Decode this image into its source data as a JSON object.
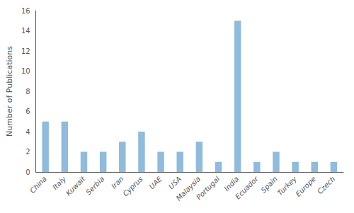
{
  "chart_data": {
    "type": "bar",
    "categories": [
      "China",
      "Italy",
      "Kuwait",
      "Serbia",
      "Iran",
      "Cyprus",
      "UAE",
      "USA",
      "Malaysia",
      "Portugal",
      "India",
      "Ecuador",
      "Spain",
      "Turkey",
      "Europe",
      "Czech"
    ],
    "values": [
      5,
      5,
      2,
      2,
      3,
      4,
      2,
      2,
      3,
      1,
      15,
      1,
      2,
      1,
      1,
      1
    ],
    "color": "#91bbda",
    "ylabel": "Number of Publications",
    "ylim": [
      0,
      16
    ],
    "yticks": [
      0,
      2,
      4,
      6,
      8,
      10,
      12,
      14,
      16
    ],
    "grid": false
  }
}
